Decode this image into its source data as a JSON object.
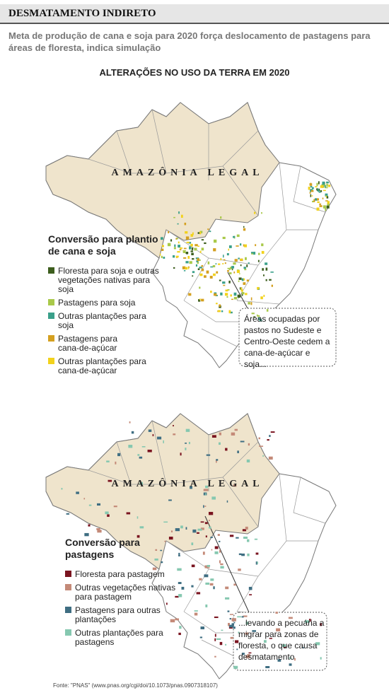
{
  "header": {
    "title": "DESMATAMENTO INDIRETO",
    "subtitle": "Meta de produção de cana e soja para 2020 força deslocamento de pastagens para áreas de floresta, indica simulação"
  },
  "heading": "ALTERAÇÕES NO USO DA TERRA EM 2020",
  "maps": [
    {
      "region_label": "AMAZÔNIA LEGAL",
      "legend_title": "Conversão para plantio de cana e soja",
      "items": [
        {
          "label": "Floresta para soja e outras vegetações nativas para soja",
          "color": "#3d5e1e"
        },
        {
          "label": "Pastagens para soja",
          "color": "#a9c94a"
        },
        {
          "label": "Outras plantações para soja",
          "color": "#3aa08a"
        },
        {
          "label": "Pastagens para cana-de-açúcar",
          "color": "#d4a020"
        },
        {
          "label": "Outras plantações para cana-de-açúcar",
          "color": "#f2d21c"
        }
      ],
      "callout": "Áreas ocupadas por pastos no Sudeste e Centro-Oeste cedem a cana-de-açúcar e soja..."
    },
    {
      "region_label": "AMAZÔNIA LEGAL",
      "legend_title": "Conversão para pastagens",
      "items": [
        {
          "label": "Floresta para pastagem",
          "color": "#7a1420"
        },
        {
          "label": "Outras vegetações nativas para pastagem",
          "color": "#c48a78"
        },
        {
          "label": "Pastagens para outras plantações",
          "color": "#3f6e82"
        },
        {
          "label": "Outras plantações para pastagens",
          "color": "#86c8b0"
        }
      ],
      "callout": "...levando a pecuária a migrar para zonas de floresta, o que causa desmatamento"
    }
  ],
  "source": "Fonte: \"PNAS\" (www.pnas.org/cgi/doi/10.1073/pnas.0907318107)"
}
